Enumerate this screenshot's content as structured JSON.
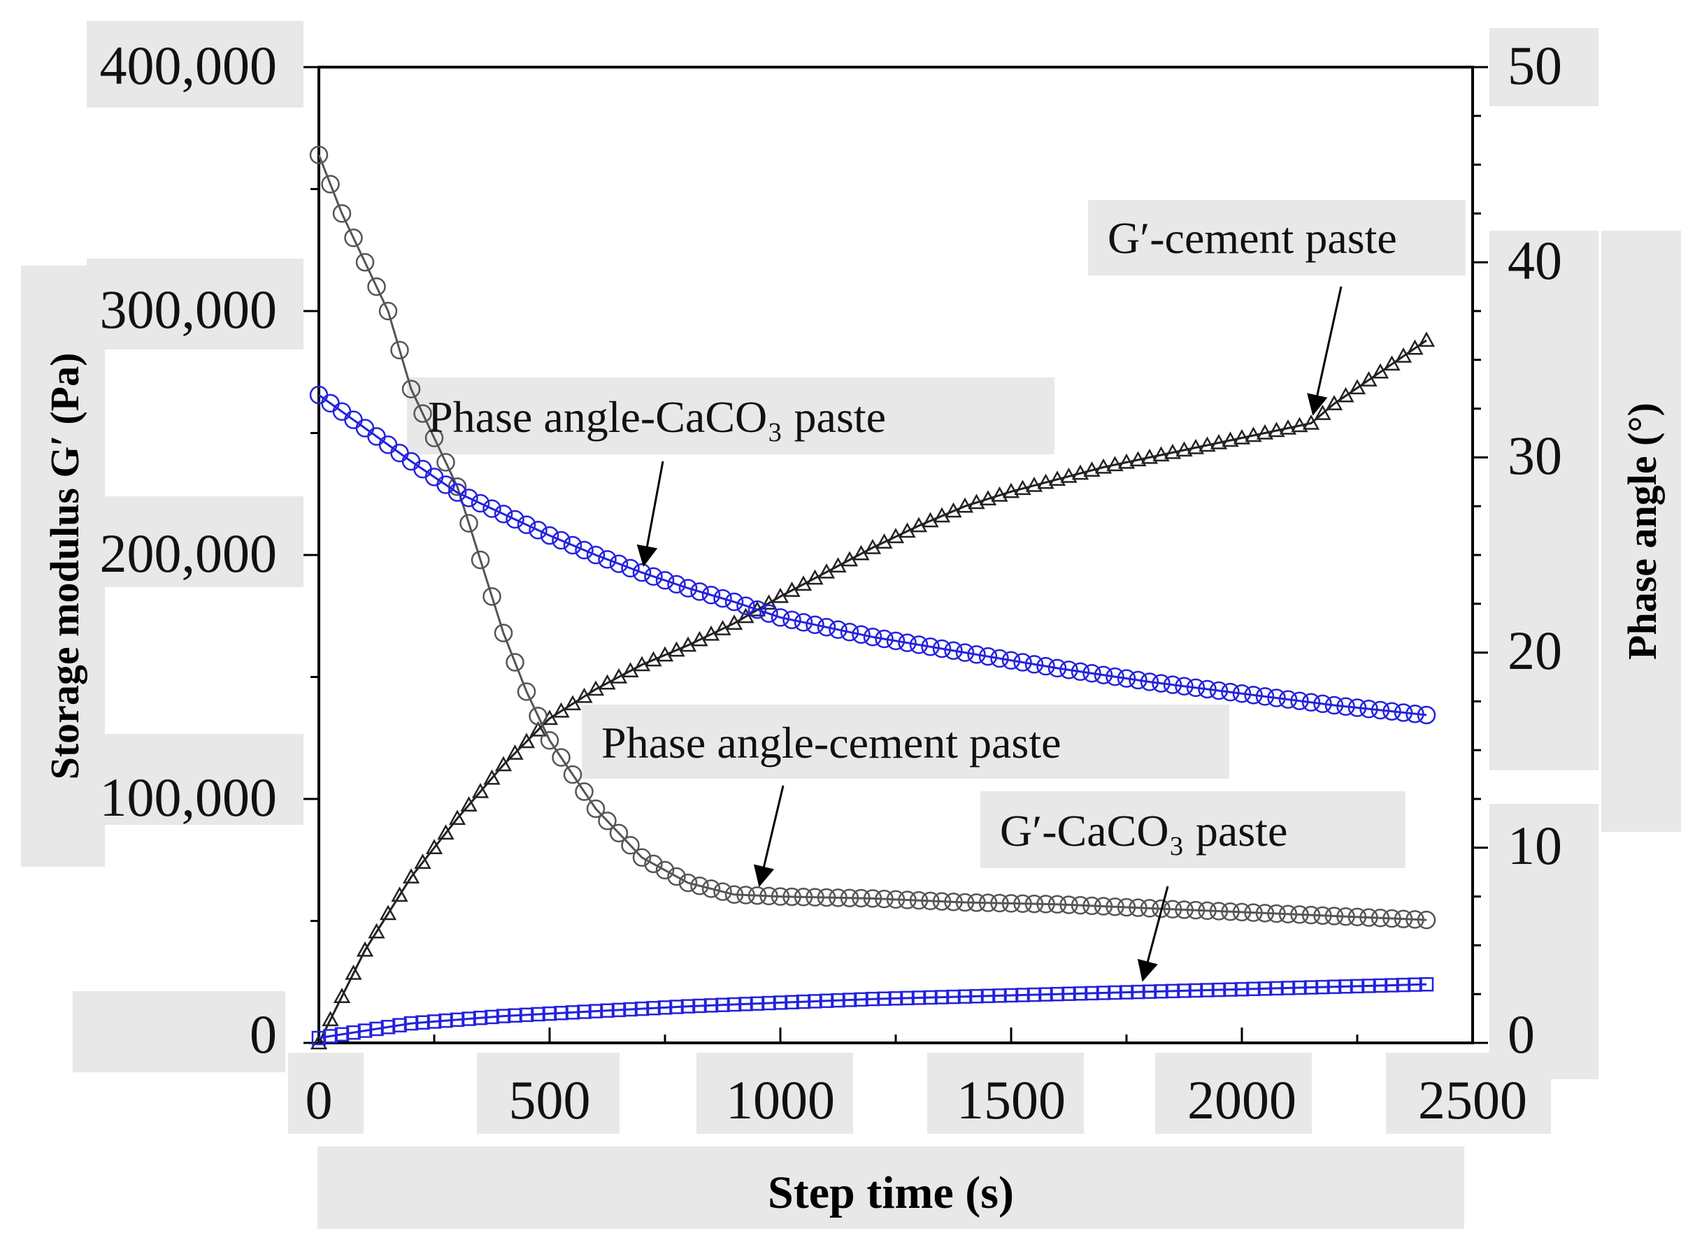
{
  "chart_data": {
    "type": "line",
    "title": "",
    "xlabel": "Step time (s)",
    "ylabel_left": "Storage modulus G′ (Pa)",
    "ylabel_right": "Phase angle (°)",
    "xlim": [
      0,
      2500
    ],
    "ylim_left": [
      0,
      400000
    ],
    "ylim_right": [
      0,
      50
    ],
    "x_ticks": [
      0,
      500,
      1000,
      1500,
      2000,
      2500
    ],
    "x_tick_labels": [
      "0",
      "500",
      "1000",
      "1500",
      "2000",
      "2500"
    ],
    "y_left_ticks": [
      0,
      100000,
      200000,
      300000,
      400000
    ],
    "y_left_tick_labels": [
      "0",
      "100,000",
      "200,000",
      "300,000",
      "400,000"
    ],
    "y_right_ticks": [
      0,
      10,
      20,
      30,
      40,
      50
    ],
    "y_right_tick_labels": [
      "0",
      "10",
      "20",
      "30",
      "40",
      "50"
    ],
    "grid": false,
    "series": [
      {
        "name": "G′-cement paste",
        "axis": "left",
        "color": "#222222",
        "marker": "triangle",
        "points": [
          [
            0,
            0
          ],
          [
            100,
            38000
          ],
          [
            200,
            68000
          ],
          [
            300,
            92000
          ],
          [
            400,
            114000
          ],
          [
            500,
            133000
          ],
          [
            600,
            145000
          ],
          [
            700,
            155000
          ],
          [
            800,
            163000
          ],
          [
            900,
            172000
          ],
          [
            1000,
            183000
          ],
          [
            1100,
            193000
          ],
          [
            1200,
            203000
          ],
          [
            1300,
            212000
          ],
          [
            1400,
            220000
          ],
          [
            1500,
            226000
          ],
          [
            1600,
            231000
          ],
          [
            1700,
            236000
          ],
          [
            1800,
            240000
          ],
          [
            1900,
            244000
          ],
          [
            2000,
            248000
          ],
          [
            2100,
            252000
          ],
          [
            2150,
            254000
          ],
          [
            2200,
            262000
          ],
          [
            2300,
            275000
          ],
          [
            2400,
            288000
          ]
        ]
      },
      {
        "name": "Phase angle-cement paste",
        "axis": "right",
        "color": "#555555",
        "marker": "circle",
        "points": [
          [
            0,
            45.5
          ],
          [
            50,
            42.5
          ],
          [
            100,
            40
          ],
          [
            150,
            37.5
          ],
          [
            200,
            33.5
          ],
          [
            300,
            28.5
          ],
          [
            400,
            21
          ],
          [
            450,
            18
          ],
          [
            500,
            15.5
          ],
          [
            600,
            12
          ],
          [
            700,
            9.5
          ],
          [
            800,
            8.2
          ],
          [
            900,
            7.6
          ],
          [
            1000,
            7.5
          ],
          [
            1200,
            7.4
          ],
          [
            1400,
            7.2
          ],
          [
            1600,
            7.1
          ],
          [
            1800,
            6.9
          ],
          [
            2000,
            6.7
          ],
          [
            2200,
            6.5
          ],
          [
            2400,
            6.3
          ]
        ]
      },
      {
        "name": "Phase angle-CaCO₃ paste",
        "axis": "right",
        "color": "#2222dd",
        "marker": "circle",
        "points": [
          [
            0,
            33.2
          ],
          [
            100,
            31.5
          ],
          [
            200,
            29.8
          ],
          [
            300,
            28.2
          ],
          [
            400,
            27.1
          ],
          [
            500,
            26
          ],
          [
            600,
            25
          ],
          [
            700,
            24.1
          ],
          [
            800,
            23.3
          ],
          [
            900,
            22.6
          ],
          [
            1000,
            21.8
          ],
          [
            1200,
            20.8
          ],
          [
            1400,
            20
          ],
          [
            1600,
            19.2
          ],
          [
            1800,
            18.5
          ],
          [
            2000,
            17.9
          ],
          [
            2200,
            17.3
          ],
          [
            2400,
            16.8
          ]
        ]
      },
      {
        "name": "G′-CaCO₃ paste",
        "axis": "left",
        "color": "#2222dd",
        "marker": "square",
        "points": [
          [
            0,
            2000
          ],
          [
            200,
            8000
          ],
          [
            400,
            11000
          ],
          [
            600,
            13000
          ],
          [
            800,
            15000
          ],
          [
            1000,
            16500
          ],
          [
            1200,
            18000
          ],
          [
            1400,
            19000
          ],
          [
            1600,
            20000
          ],
          [
            1800,
            21000
          ],
          [
            2000,
            22000
          ],
          [
            2200,
            23000
          ],
          [
            2400,
            24000
          ]
        ]
      }
    ],
    "annotations": [
      {
        "text": "G′-cement paste",
        "series": "G′-cement paste",
        "arrow_to": [
          2150,
          254000
        ],
        "arrow_axis": "left"
      },
      {
        "text": "Phase angle-CaCO₃ paste",
        "series": "Phase angle-CaCO₃ paste",
        "arrow_to": [
          700,
          24.0
        ],
        "arrow_axis": "right"
      },
      {
        "text": "Phase angle-cement paste",
        "series": "Phase angle-cement paste",
        "arrow_to": [
          950,
          7.6
        ],
        "arrow_axis": "right"
      },
      {
        "text": "G′-CaCO₃ paste",
        "series": "G′-CaCO₃ paste",
        "arrow_to": [
          1780,
          22000
        ],
        "arrow_axis": "left"
      }
    ]
  }
}
